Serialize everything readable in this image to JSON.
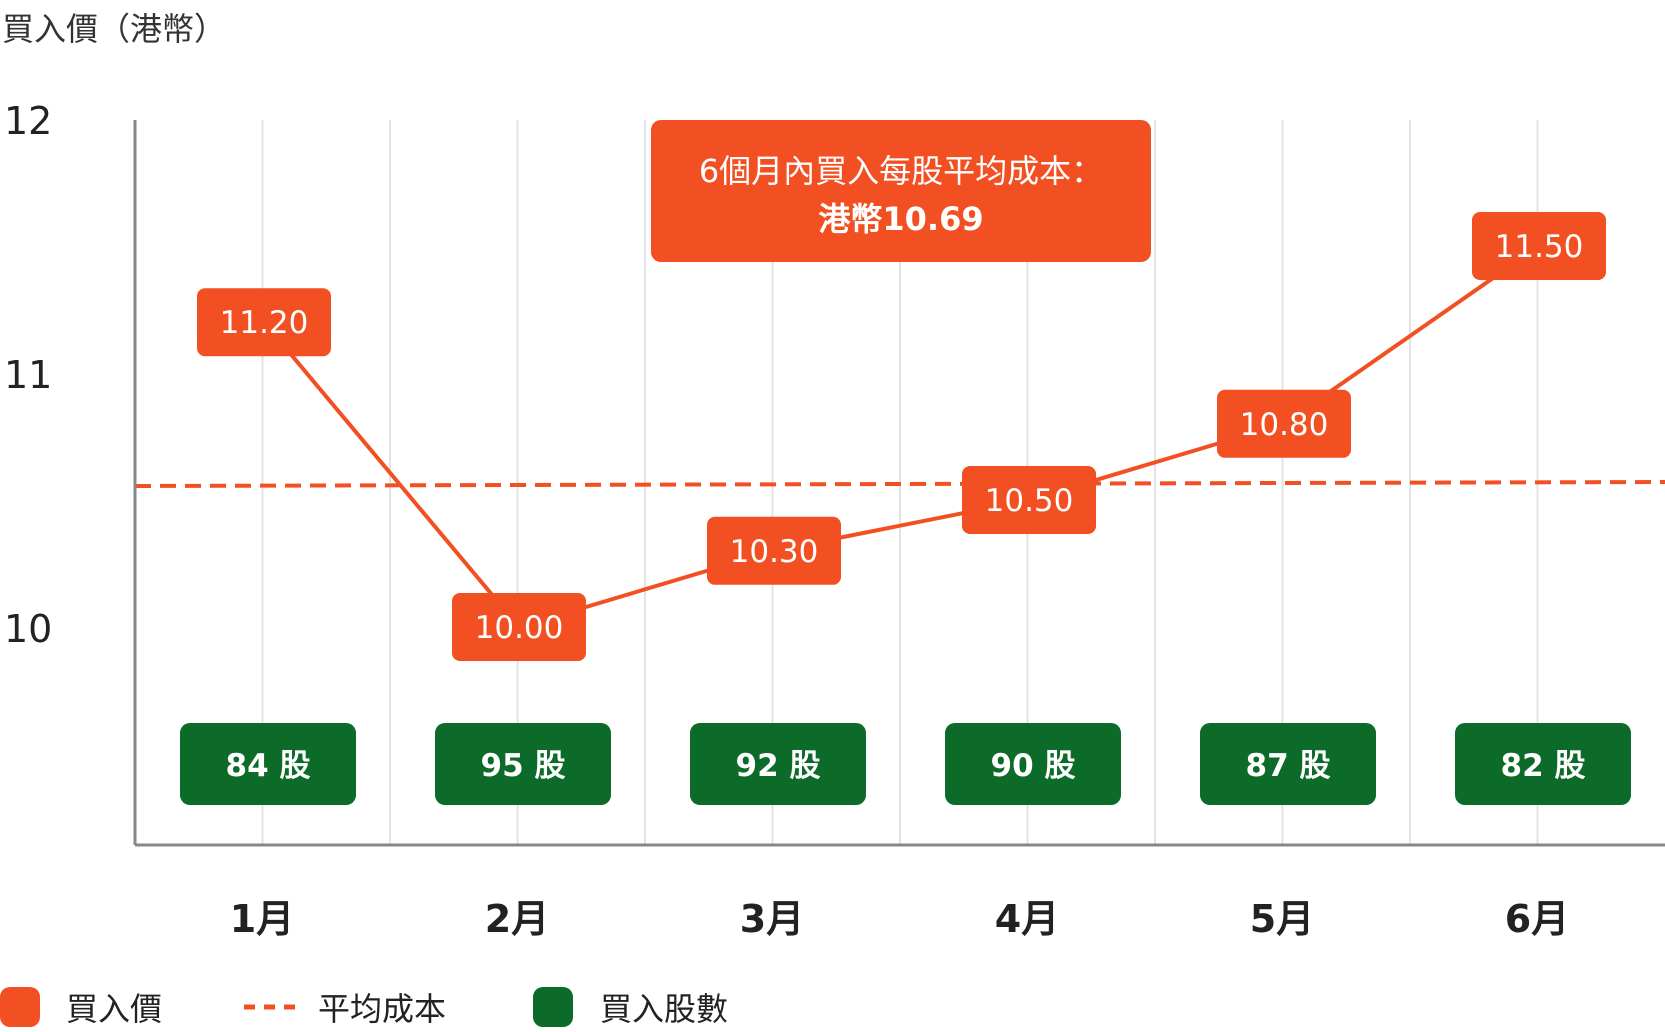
{
  "colors": {
    "price": "#f25022",
    "shares": "#0d6b2a",
    "grid": "#e3e3e3",
    "axis": "#888888"
  },
  "chart_data": {
    "type": "line",
    "ylabel": "買入價（港幣）",
    "xlabel": "",
    "ylim": [
      9.2,
      12
    ],
    "yticks": [
      "10",
      "11",
      "12"
    ],
    "categories": [
      "1月",
      "2月",
      "3月",
      "4月",
      "5月",
      "6月"
    ],
    "series": [
      {
        "name": "買入價",
        "values": [
          11.2,
          10.0,
          10.3,
          10.5,
          10.8,
          11.5
        ],
        "labels": [
          "11.20",
          "10.00",
          "10.30",
          "10.50",
          "10.80",
          "11.50"
        ]
      }
    ],
    "shares": {
      "name": "買入股數",
      "values": [
        84,
        95,
        92,
        90,
        87,
        82
      ],
      "labels": [
        "84 股",
        "95 股",
        "92 股",
        "90 股",
        "87 股",
        "82 股"
      ]
    },
    "average": {
      "name": "平均成本",
      "value": 10.69
    },
    "annotation": {
      "line1": "6個月內買入每股平均成本：",
      "line2": "港幣10.69"
    },
    "legend": [
      "買入價",
      "平均成本",
      "買入股數"
    ],
    "legend_position": "bottom-left",
    "grid": true
  }
}
